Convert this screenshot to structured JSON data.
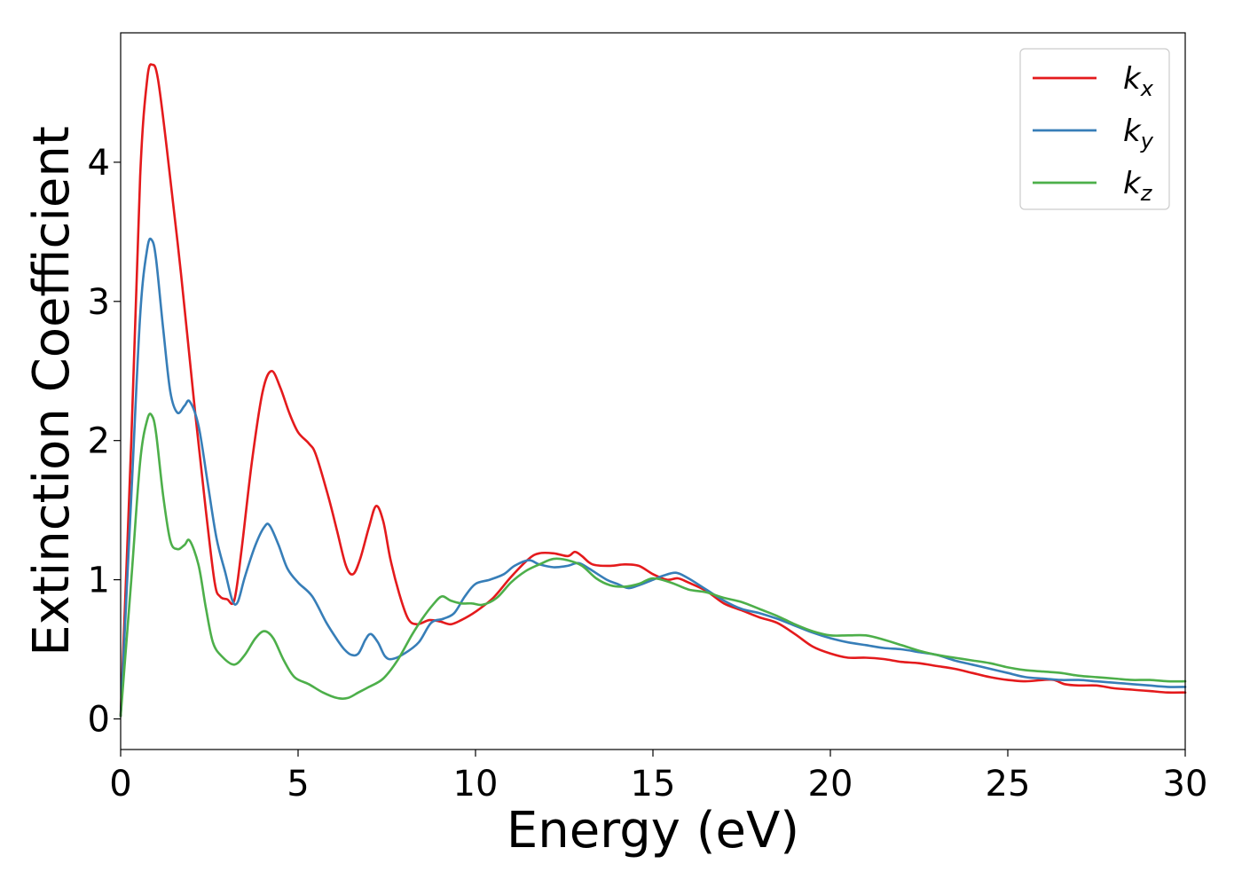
{
  "chart_data": {
    "type": "line",
    "title": "",
    "xlabel": "Energy (eV)",
    "ylabel": "Extinction Coefficient",
    "xlim": [
      0,
      30
    ],
    "ylim": [
      -0.22,
      4.93
    ],
    "xticks": [
      0,
      5,
      10,
      15,
      20,
      25,
      30
    ],
    "yticks": [
      0,
      1,
      2,
      3,
      4
    ],
    "grid": false,
    "legend_position": "top-right",
    "series": [
      {
        "name": "k",
        "sub": "x",
        "color": "#e41a1c",
        "points": [
          [
            0,
            0.02
          ],
          [
            0.3,
            2.0
          ],
          [
            0.55,
            3.9
          ],
          [
            0.75,
            4.6
          ],
          [
            0.9,
            4.7
          ],
          [
            1.05,
            4.6
          ],
          [
            1.3,
            4.1
          ],
          [
            1.7,
            3.2
          ],
          [
            2.1,
            2.2
          ],
          [
            2.4,
            1.5
          ],
          [
            2.65,
            0.98
          ],
          [
            2.8,
            0.88
          ],
          [
            3.0,
            0.86
          ],
          [
            3.2,
            0.85
          ],
          [
            3.4,
            1.2
          ],
          [
            3.7,
            1.85
          ],
          [
            4.0,
            2.35
          ],
          [
            4.25,
            2.5
          ],
          [
            4.5,
            2.38
          ],
          [
            4.75,
            2.2
          ],
          [
            5.0,
            2.06
          ],
          [
            5.3,
            1.98
          ],
          [
            5.5,
            1.9
          ],
          [
            5.85,
            1.6
          ],
          [
            6.1,
            1.35
          ],
          [
            6.35,
            1.1
          ],
          [
            6.55,
            1.04
          ],
          [
            6.75,
            1.15
          ],
          [
            7.0,
            1.38
          ],
          [
            7.2,
            1.53
          ],
          [
            7.4,
            1.42
          ],
          [
            7.6,
            1.15
          ],
          [
            7.85,
            0.9
          ],
          [
            8.1,
            0.72
          ],
          [
            8.35,
            0.68
          ],
          [
            8.7,
            0.71
          ],
          [
            9.0,
            0.7
          ],
          [
            9.3,
            0.68
          ],
          [
            9.6,
            0.71
          ],
          [
            10.0,
            0.77
          ],
          [
            10.5,
            0.87
          ],
          [
            11.0,
            1.02
          ],
          [
            11.5,
            1.15
          ],
          [
            11.8,
            1.19
          ],
          [
            12.2,
            1.19
          ],
          [
            12.6,
            1.17
          ],
          [
            12.8,
            1.2
          ],
          [
            13.0,
            1.17
          ],
          [
            13.3,
            1.11
          ],
          [
            13.8,
            1.1
          ],
          [
            14.2,
            1.11
          ],
          [
            14.6,
            1.1
          ],
          [
            15.0,
            1.04
          ],
          [
            15.4,
            1.0
          ],
          [
            15.7,
            1.01
          ],
          [
            16.0,
            0.98
          ],
          [
            16.5,
            0.92
          ],
          [
            17.0,
            0.83
          ],
          [
            17.5,
            0.78
          ],
          [
            18.0,
            0.73
          ],
          [
            18.5,
            0.69
          ],
          [
            19.0,
            0.61
          ],
          [
            19.5,
            0.52
          ],
          [
            20.0,
            0.47
          ],
          [
            20.5,
            0.44
          ],
          [
            21.0,
            0.44
          ],
          [
            21.5,
            0.43
          ],
          [
            22.0,
            0.41
          ],
          [
            22.5,
            0.4
          ],
          [
            23.0,
            0.38
          ],
          [
            23.5,
            0.36
          ],
          [
            24.0,
            0.33
          ],
          [
            24.5,
            0.3
          ],
          [
            25.0,
            0.28
          ],
          [
            25.5,
            0.27
          ],
          [
            26.0,
            0.28
          ],
          [
            26.3,
            0.28
          ],
          [
            26.6,
            0.25
          ],
          [
            27.0,
            0.24
          ],
          [
            27.5,
            0.24
          ],
          [
            28.0,
            0.22
          ],
          [
            28.5,
            0.21
          ],
          [
            29.0,
            0.2
          ],
          [
            29.5,
            0.19
          ],
          [
            30.0,
            0.19
          ]
        ]
      },
      {
        "name": "k",
        "sub": "y",
        "color": "#377eb8",
        "points": [
          [
            0,
            0.02
          ],
          [
            0.3,
            1.6
          ],
          [
            0.55,
            2.9
          ],
          [
            0.75,
            3.38
          ],
          [
            0.88,
            3.44
          ],
          [
            1.0,
            3.3
          ],
          [
            1.2,
            2.8
          ],
          [
            1.4,
            2.35
          ],
          [
            1.6,
            2.2
          ],
          [
            1.8,
            2.25
          ],
          [
            1.95,
            2.28
          ],
          [
            2.2,
            2.1
          ],
          [
            2.45,
            1.7
          ],
          [
            2.7,
            1.3
          ],
          [
            2.95,
            1.05
          ],
          [
            3.15,
            0.85
          ],
          [
            3.3,
            0.84
          ],
          [
            3.5,
            1.02
          ],
          [
            3.8,
            1.25
          ],
          [
            4.05,
            1.38
          ],
          [
            4.2,
            1.39
          ],
          [
            4.45,
            1.25
          ],
          [
            4.7,
            1.08
          ],
          [
            5.0,
            0.98
          ],
          [
            5.4,
            0.88
          ],
          [
            5.8,
            0.69
          ],
          [
            6.1,
            0.57
          ],
          [
            6.3,
            0.5
          ],
          [
            6.5,
            0.46
          ],
          [
            6.7,
            0.47
          ],
          [
            6.9,
            0.57
          ],
          [
            7.05,
            0.61
          ],
          [
            7.25,
            0.55
          ],
          [
            7.45,
            0.45
          ],
          [
            7.65,
            0.43
          ],
          [
            8.0,
            0.47
          ],
          [
            8.4,
            0.55
          ],
          [
            8.75,
            0.69
          ],
          [
            9.1,
            0.72
          ],
          [
            9.4,
            0.76
          ],
          [
            9.7,
            0.88
          ],
          [
            10.0,
            0.97
          ],
          [
            10.4,
            1.0
          ],
          [
            10.8,
            1.04
          ],
          [
            11.1,
            1.1
          ],
          [
            11.5,
            1.14
          ],
          [
            11.8,
            1.11
          ],
          [
            12.2,
            1.09
          ],
          [
            12.6,
            1.1
          ],
          [
            12.9,
            1.12
          ],
          [
            13.2,
            1.08
          ],
          [
            13.7,
            1.0
          ],
          [
            14.0,
            0.97
          ],
          [
            14.3,
            0.94
          ],
          [
            14.6,
            0.96
          ],
          [
            15.0,
            1.0
          ],
          [
            15.3,
            1.03
          ],
          [
            15.65,
            1.05
          ],
          [
            16.0,
            1.01
          ],
          [
            16.5,
            0.93
          ],
          [
            17.0,
            0.85
          ],
          [
            17.5,
            0.79
          ],
          [
            18.0,
            0.76
          ],
          [
            18.5,
            0.72
          ],
          [
            19.0,
            0.67
          ],
          [
            19.5,
            0.62
          ],
          [
            20.0,
            0.58
          ],
          [
            20.5,
            0.55
          ],
          [
            21.0,
            0.53
          ],
          [
            21.5,
            0.51
          ],
          [
            22.0,
            0.5
          ],
          [
            22.5,
            0.48
          ],
          [
            23.0,
            0.46
          ],
          [
            23.5,
            0.42
          ],
          [
            24.0,
            0.39
          ],
          [
            24.5,
            0.36
          ],
          [
            25.0,
            0.33
          ],
          [
            25.5,
            0.3
          ],
          [
            26.0,
            0.29
          ],
          [
            26.5,
            0.28
          ],
          [
            27.0,
            0.28
          ],
          [
            27.5,
            0.27
          ],
          [
            28.0,
            0.26
          ],
          [
            28.5,
            0.25
          ],
          [
            29.0,
            0.24
          ],
          [
            29.5,
            0.23
          ],
          [
            30.0,
            0.23
          ]
        ]
      },
      {
        "name": "k",
        "sub": "z",
        "color": "#4daf4a",
        "points": [
          [
            0,
            0.02
          ],
          [
            0.3,
            1.0
          ],
          [
            0.55,
            1.85
          ],
          [
            0.75,
            2.15
          ],
          [
            0.88,
            2.18
          ],
          [
            1.0,
            2.05
          ],
          [
            1.2,
            1.6
          ],
          [
            1.4,
            1.28
          ],
          [
            1.6,
            1.22
          ],
          [
            1.8,
            1.25
          ],
          [
            1.95,
            1.28
          ],
          [
            2.2,
            1.1
          ],
          [
            2.4,
            0.8
          ],
          [
            2.6,
            0.55
          ],
          [
            2.85,
            0.45
          ],
          [
            3.2,
            0.39
          ],
          [
            3.5,
            0.46
          ],
          [
            3.8,
            0.58
          ],
          [
            4.05,
            0.63
          ],
          [
            4.3,
            0.58
          ],
          [
            4.6,
            0.42
          ],
          [
            4.9,
            0.3
          ],
          [
            5.3,
            0.25
          ],
          [
            5.7,
            0.19
          ],
          [
            6.1,
            0.15
          ],
          [
            6.4,
            0.15
          ],
          [
            6.7,
            0.19
          ],
          [
            7.0,
            0.23
          ],
          [
            7.4,
            0.29
          ],
          [
            7.8,
            0.42
          ],
          [
            8.2,
            0.6
          ],
          [
            8.5,
            0.72
          ],
          [
            8.8,
            0.82
          ],
          [
            9.05,
            0.88
          ],
          [
            9.3,
            0.85
          ],
          [
            9.6,
            0.83
          ],
          [
            9.9,
            0.83
          ],
          [
            10.2,
            0.82
          ],
          [
            10.6,
            0.87
          ],
          [
            11.0,
            0.98
          ],
          [
            11.4,
            1.06
          ],
          [
            11.8,
            1.11
          ],
          [
            12.2,
            1.15
          ],
          [
            12.6,
            1.14
          ],
          [
            13.0,
            1.1
          ],
          [
            13.4,
            1.01
          ],
          [
            13.8,
            0.96
          ],
          [
            14.2,
            0.95
          ],
          [
            14.6,
            0.97
          ],
          [
            15.0,
            1.01
          ],
          [
            15.5,
            0.98
          ],
          [
            16.0,
            0.93
          ],
          [
            16.5,
            0.91
          ],
          [
            17.0,
            0.87
          ],
          [
            17.5,
            0.84
          ],
          [
            18.0,
            0.79
          ],
          [
            18.5,
            0.74
          ],
          [
            19.0,
            0.68
          ],
          [
            19.5,
            0.63
          ],
          [
            20.0,
            0.6
          ],
          [
            20.5,
            0.6
          ],
          [
            21.0,
            0.6
          ],
          [
            21.5,
            0.57
          ],
          [
            22.0,
            0.53
          ],
          [
            22.5,
            0.49
          ],
          [
            23.0,
            0.46
          ],
          [
            23.5,
            0.44
          ],
          [
            24.0,
            0.42
          ],
          [
            24.5,
            0.4
          ],
          [
            25.0,
            0.37
          ],
          [
            25.5,
            0.35
          ],
          [
            26.0,
            0.34
          ],
          [
            26.5,
            0.33
          ],
          [
            27.0,
            0.31
          ],
          [
            27.5,
            0.3
          ],
          [
            28.0,
            0.29
          ],
          [
            28.5,
            0.28
          ],
          [
            29.0,
            0.28
          ],
          [
            29.5,
            0.27
          ],
          [
            30.0,
            0.27
          ]
        ]
      }
    ]
  }
}
